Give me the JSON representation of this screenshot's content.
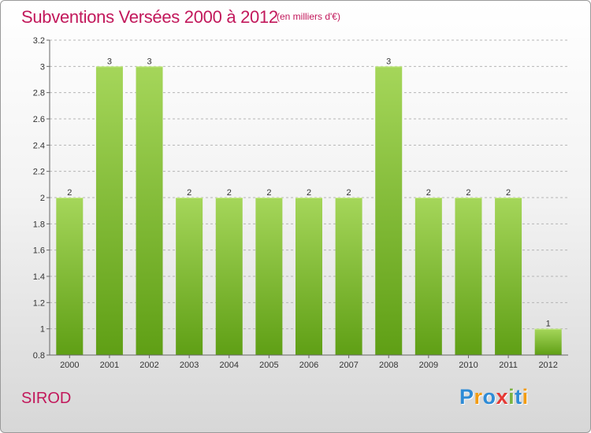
{
  "title": "Subventions Versées 2000 à 2012",
  "unit_note": "(en milliers d'€)",
  "commune": "SIROD",
  "logo": {
    "text": "Proxiti",
    "letters": [
      {
        "ch": "P",
        "color": "#2e8bd6"
      },
      {
        "ch": "r",
        "color": "#f39c12"
      },
      {
        "ch": "o",
        "color": "#2e8bd6"
      },
      {
        "ch": "x",
        "color": "#e53935"
      },
      {
        "ch": "i",
        "color": "#7cb342"
      },
      {
        "ch": "t",
        "color": "#2e8bd6"
      },
      {
        "ch": "i",
        "color": "#f39c12"
      }
    ]
  },
  "colors": {
    "bar_light": "#a5d65a",
    "bar_dark": "#5f9f15",
    "grid": "#b5b5b5",
    "axis": "#666666",
    "text": "#333333",
    "accent": "#c2185b"
  },
  "chart_data": {
    "type": "bar",
    "categories": [
      "2000",
      "2001",
      "2002",
      "2003",
      "2004",
      "2005",
      "2006",
      "2007",
      "2008",
      "2009",
      "2010",
      "2011",
      "2012"
    ],
    "values": [
      2,
      3,
      3,
      2,
      2,
      2,
      2,
      2,
      3,
      2,
      2,
      2,
      1
    ],
    "data_labels": [
      "2",
      "3",
      "3",
      "2",
      "2",
      "2",
      "2",
      "2",
      "3",
      "2",
      "2",
      "2",
      "1"
    ],
    "ylim": [
      0.8,
      3.2
    ],
    "yticks": [
      0.8,
      1,
      1.2,
      1.4,
      1.6,
      1.8,
      2,
      2.2,
      2.4,
      2.6,
      2.8,
      3,
      3.2
    ],
    "ytick_labels": [
      "0.8",
      "1",
      "1.2",
      "1.4",
      "1.6",
      "1.8",
      "2",
      "2.2",
      "2.4",
      "2.6",
      "2.8",
      "3",
      "3.2"
    ],
    "grid": "horizontal dashed"
  }
}
